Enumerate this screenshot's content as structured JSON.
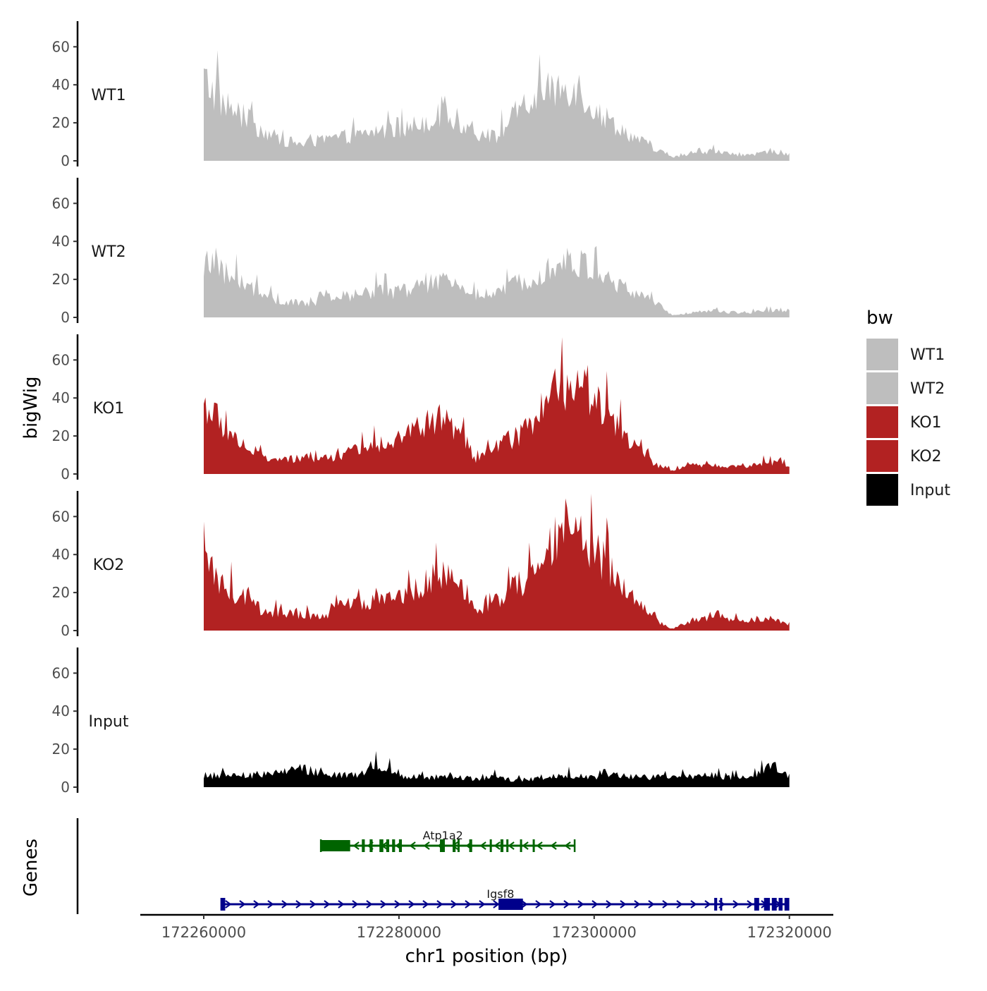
{
  "chart_data": {
    "type": "area",
    "title": "",
    "ylabel": "bigWig",
    "xlabel": "chr1 position (bp)",
    "xlim": [
      172253500,
      172324500
    ],
    "ylim": [
      0,
      72
    ],
    "yticks": [
      0,
      20,
      40,
      60
    ],
    "xticks": [
      172260000,
      172280000,
      172300000,
      172320000
    ],
    "xtick_labels": [
      "172260000",
      "172280000",
      "172300000",
      "172320000"
    ],
    "legend": {
      "title": "bw",
      "position": "right",
      "entries": [
        {
          "label": "WT1",
          "color": "#bebebe"
        },
        {
          "label": "WT2",
          "color": "#bebebe"
        },
        {
          "label": "KO1",
          "color": "#b22222"
        },
        {
          "label": "KO2",
          "color": "#b22222"
        },
        {
          "label": "Input",
          "color": "#000000"
        }
      ]
    },
    "series": [
      {
        "name": "WT1",
        "color": "#bebebe",
        "x": [
          172260000,
          172262000,
          172264000,
          172266000,
          172268000,
          172270000,
          172272000,
          172274000,
          172276000,
          172278000,
          172280000,
          172282000,
          172284000,
          172286000,
          172288000,
          172290000,
          172292000,
          172294000,
          172296000,
          172298000,
          172300000,
          172302000,
          172304000,
          172306000,
          172308000,
          172310000,
          172312000,
          172314000,
          172316000,
          172318000,
          172320000
        ],
        "values": [
          48,
          34,
          26,
          18,
          12,
          10,
          12,
          14,
          15,
          18,
          17,
          22,
          26,
          24,
          16,
          14,
          28,
          36,
          42,
          46,
          30,
          22,
          14,
          8,
          2,
          4,
          6,
          4,
          3,
          6,
          4
        ]
      },
      {
        "name": "WT2",
        "color": "#bebebe",
        "x": [
          172260000,
          172262000,
          172264000,
          172266000,
          172268000,
          172270000,
          172272000,
          172274000,
          172276000,
          172278000,
          172280000,
          172282000,
          172284000,
          172286000,
          172288000,
          172290000,
          172292000,
          172294000,
          172296000,
          172298000,
          172300000,
          172302000,
          172304000,
          172306000,
          172308000,
          172310000,
          172312000,
          172314000,
          172316000,
          172318000,
          172320000
        ],
        "values": [
          32,
          26,
          20,
          13,
          9,
          8,
          10,
          12,
          14,
          16,
          15,
          18,
          21,
          19,
          14,
          13,
          20,
          26,
          31,
          33,
          27,
          20,
          15,
          10,
          1,
          3,
          4,
          3,
          3,
          4,
          4
        ]
      },
      {
        "name": "KO1",
        "color": "#b22222",
        "x": [
          172260000,
          172262000,
          172264000,
          172266000,
          172268000,
          172270000,
          172272000,
          172274000,
          172276000,
          172278000,
          172280000,
          172282000,
          172284000,
          172286000,
          172288000,
          172290000,
          172292000,
          172294000,
          172296000,
          172298000,
          172300000,
          172302000,
          172304000,
          172306000,
          172308000,
          172310000,
          172312000,
          172314000,
          172316000,
          172318000,
          172320000
        ],
        "values": [
          42,
          28,
          18,
          10,
          8,
          9,
          9,
          11,
          14,
          18,
          22,
          27,
          33,
          26,
          8,
          16,
          22,
          30,
          46,
          58,
          46,
          30,
          18,
          6,
          2,
          5,
          5,
          4,
          5,
          7,
          6
        ]
      },
      {
        "name": "KO2",
        "color": "#b22222",
        "x": [
          172260000,
          172262000,
          172264000,
          172266000,
          172268000,
          172270000,
          172272000,
          172274000,
          172276000,
          172278000,
          172280000,
          172282000,
          172284000,
          172286000,
          172288000,
          172290000,
          172292000,
          172294000,
          172296000,
          172298000,
          172300000,
          172302000,
          172304000,
          172306000,
          172308000,
          172310000,
          172312000,
          172314000,
          172316000,
          172318000,
          172320000
        ],
        "values": [
          40,
          26,
          20,
          12,
          10,
          9,
          8,
          14,
          16,
          18,
          20,
          26,
          34,
          28,
          10,
          18,
          26,
          34,
          52,
          60,
          48,
          34,
          20,
          7,
          1,
          6,
          7,
          6,
          6,
          8,
          4
        ]
      },
      {
        "name": "Input",
        "color": "#000000",
        "x": [
          172260000,
          172262000,
          172264000,
          172266000,
          172268000,
          172270000,
          172272000,
          172274000,
          172276000,
          172278000,
          172280000,
          172282000,
          172284000,
          172286000,
          172288000,
          172290000,
          172292000,
          172294000,
          172296000,
          172298000,
          172300000,
          172302000,
          172304000,
          172306000,
          172308000,
          172310000,
          172312000,
          172314000,
          172316000,
          172318000,
          172320000
        ],
        "values": [
          6,
          7,
          6,
          8,
          9,
          11,
          8,
          7,
          8,
          13,
          7,
          6,
          6,
          6,
          5,
          6,
          4,
          5,
          7,
          7,
          6,
          7,
          6,
          6,
          6,
          6,
          7,
          6,
          5,
          13,
          7
        ]
      }
    ],
    "tracks_label": "Genes",
    "genes": [
      {
        "name": "Atp1a2",
        "color": "#006400",
        "strand": "-",
        "start": 172272000,
        "end": 172298000,
        "exons": [
          [
            172272000,
            172275000
          ],
          [
            172276200,
            172276500
          ],
          [
            172277000,
            172277300
          ],
          [
            172278000,
            172278400
          ],
          [
            172278700,
            172279000
          ],
          [
            172279300,
            172279600
          ],
          [
            172280000,
            172280300
          ],
          [
            172284200,
            172284700
          ],
          [
            172285500,
            172285800
          ],
          [
            172286000,
            172286200
          ],
          [
            172287200,
            172287500
          ],
          [
            172289300,
            172289500
          ],
          [
            172290400,
            172290700
          ],
          [
            172291000,
            172291200
          ],
          [
            172292400,
            172292600
          ],
          [
            172293700,
            172293900
          ]
        ]
      },
      {
        "name": "Igsf8",
        "color": "#00008b",
        "strand": "+",
        "start": 172261800,
        "end": 172319900,
        "exons": [
          [
            172261800,
            172262200
          ],
          [
            172290200,
            172292700
          ],
          [
            172312300,
            172312600
          ],
          [
            172312900,
            172313100
          ],
          [
            172316400,
            172316900
          ],
          [
            172317400,
            172318000
          ],
          [
            172318200,
            172318700
          ],
          [
            172318900,
            172319300
          ],
          [
            172319500,
            172319900
          ]
        ]
      }
    ]
  }
}
